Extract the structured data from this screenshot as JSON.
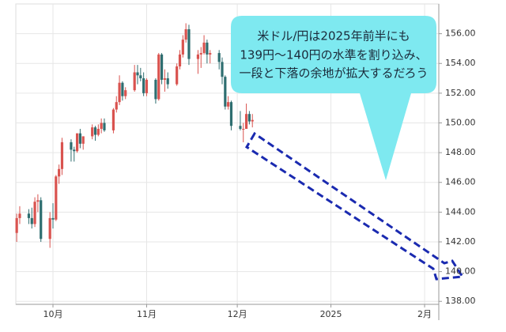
{
  "chart_data": {
    "type": "candlestick",
    "annotation": [
      "米ドル/円は2025年前半にも",
      "139円～140円の水準を割り込み、",
      "一段と下落の余地が拡大するだろう"
    ],
    "x": [
      -12,
      -11,
      -8,
      -7,
      -6,
      -5,
      -4,
      -1,
      0,
      1,
      2,
      3,
      6,
      7,
      8,
      9,
      10,
      13,
      14,
      15,
      16,
      17,
      20,
      21,
      22,
      23,
      24,
      27,
      28,
      29,
      30,
      31,
      34,
      35,
      36,
      37,
      38,
      41,
      42,
      43,
      44,
      45,
      48,
      49,
      50,
      51,
      52,
      55,
      56,
      57,
      58,
      59,
      62,
      63,
      64,
      65,
      66
    ],
    "open": [
      142.6,
      143.6,
      143.9,
      143.6,
      143.2,
      144.7,
      144.8,
      142.2,
      143.6,
      143.5,
      146.4,
      146.9,
      148.7,
      148.2,
      148.1,
      149.3,
      148.6,
      149.1,
      149.7,
      149.2,
      149.6,
      150.0,
      149.5,
      150.9,
      151.4,
      152.7,
      151.8,
      152.2,
      153.4,
      153.2,
      153.0,
      152.0,
      152.9,
      151.6,
      154.6,
      152.9,
      153.0,
      152.6,
      153.8,
      154.6,
      155.6,
      156.3,
      154.3,
      154.6,
      154.7,
      155.4,
      154.6,
      154.7,
      154.1,
      153.1,
      151.1,
      151.4,
      149.8,
      149.6,
      149.6,
      150.6,
      150.1
    ],
    "high": [
      143.9,
      144.4,
      144.2,
      144.3,
      145.0,
      145.2,
      145.0,
      144.0,
      144.6,
      146.5,
      147.2,
      149.0,
      148.9,
      148.4,
      149.3,
      149.6,
      149.1,
      149.9,
      149.8,
      149.9,
      150.3,
      150.3,
      151.0,
      151.8,
      153.2,
      152.8,
      152.4,
      153.9,
      153.9,
      153.7,
      153.4,
      153.0,
      153.0,
      154.7,
      154.7,
      153.6,
      153.4,
      154.0,
      154.9,
      155.9,
      156.7,
      156.6,
      154.9,
      155.1,
      155.9,
      155.6,
      154.9,
      154.9,
      154.4,
      153.2,
      151.8,
      151.5,
      150.8,
      150.0,
      151.3,
      150.8,
      150.6
    ],
    "low": [
      142.0,
      143.2,
      143.2,
      142.9,
      143.0,
      144.0,
      142.0,
      141.6,
      142.9,
      143.4,
      145.9,
      146.5,
      147.4,
      147.4,
      148.0,
      148.3,
      148.2,
      148.9,
      148.8,
      149.1,
      149.3,
      149.4,
      149.3,
      150.7,
      151.2,
      151.5,
      151.6,
      152.1,
      152.6,
      152.8,
      151.8,
      151.8,
      151.3,
      151.5,
      152.6,
      152.1,
      152.3,
      152.5,
      153.6,
      154.4,
      155.4,
      153.9,
      153.3,
      153.7,
      154.6,
      154.0,
      154.0,
      153.6,
      152.6,
      150.9,
      150.9,
      149.5,
      149.5,
      148.7,
      149.6,
      149.9,
      149.7
    ],
    "close": [
      143.6,
      143.9,
      143.6,
      143.2,
      144.7,
      144.8,
      142.2,
      143.6,
      143.5,
      146.4,
      146.9,
      148.7,
      148.2,
      148.1,
      149.3,
      148.6,
      149.1,
      149.7,
      149.2,
      149.6,
      150.0,
      149.5,
      150.9,
      151.4,
      152.7,
      151.8,
      152.2,
      153.4,
      153.2,
      153.0,
      152.0,
      152.9,
      151.6,
      154.6,
      152.9,
      153.0,
      152.6,
      153.8,
      154.6,
      155.6,
      156.3,
      154.3,
      154.6,
      154.7,
      155.4,
      154.6,
      154.7,
      154.1,
      153.1,
      151.1,
      151.4,
      149.8,
      149.6,
      149.6,
      150.6,
      150.1,
      150.2
    ],
    "up_color": "#d9534f",
    "down_color": "#2e6e70",
    "xlim": [
      -12.3,
      127.7
    ],
    "xticks": [
      {
        "value": 0,
        "label": "10月"
      },
      {
        "value": 31,
        "label": "11月"
      },
      {
        "value": 61,
        "label": "12月"
      },
      {
        "value": 92,
        "label": "2025"
      },
      {
        "value": 123,
        "label": "2月"
      }
    ],
    "ylim": [
      137.8,
      158
    ],
    "yticks": [
      {
        "value": 138,
        "label": "138.00"
      },
      {
        "value": 140,
        "label": "140.00"
      },
      {
        "value": 142,
        "label": "142.00"
      },
      {
        "value": 144,
        "label": "144.00"
      },
      {
        "value": 146,
        "label": "146.00"
      },
      {
        "value": 148,
        "label": "148.00"
      },
      {
        "value": 150,
        "label": "150.00"
      },
      {
        "value": 152,
        "label": "152.00"
      },
      {
        "value": 154,
        "label": "154.00"
      },
      {
        "value": 156,
        "label": "156.00"
      }
    ],
    "grid": true
  }
}
